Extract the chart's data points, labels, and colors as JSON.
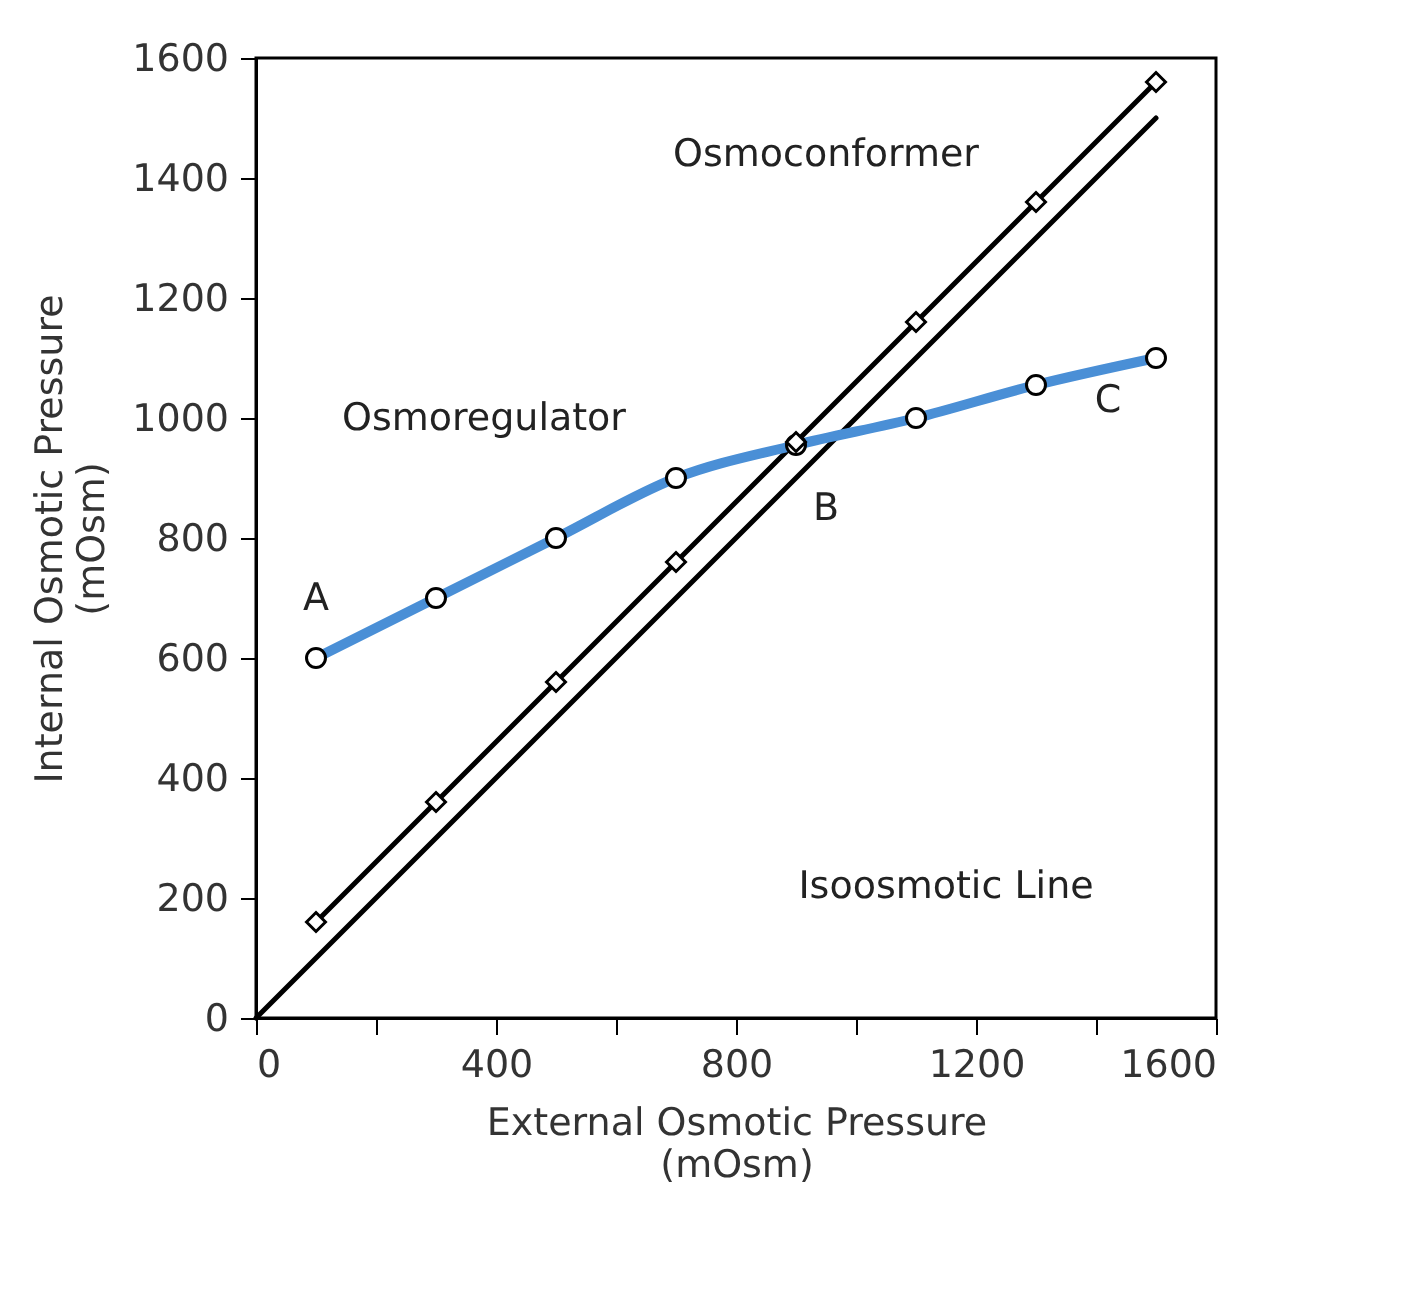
{
  "chart_data": {
    "type": "line",
    "xlabel": "External Osmotic Pressure\n(mOsm)",
    "ylabel": "Internal Osmotic Pressure\n(mOsm)",
    "xlim": [
      0,
      1600
    ],
    "ylim": [
      0,
      1600
    ],
    "xticks": [
      0,
      {
        "value": 200,
        "label": null
      },
      400,
      {
        "value": 600,
        "label": null
      },
      800,
      {
        "value": 1000,
        "label": null
      },
      1200,
      {
        "value": 1400,
        "label": null
      },
      1600
    ],
    "yticks": [
      0,
      200,
      400,
      600,
      800,
      1000,
      1200,
      1400,
      1600
    ],
    "grid": false,
    "series": [
      {
        "color": "#000000",
        "marker": "none",
        "line_style": "solid",
        "x": [
          0,
          1500
        ],
        "values": [
          0,
          1500
        ]
      },
      {
        "color": "#000000",
        "marker": "diamond",
        "line_style": "solid",
        "x": [
          100,
          300,
          500,
          700,
          900,
          1100,
          1300,
          1500
        ],
        "values": [
          160,
          360,
          560,
          760,
          960,
          1160,
          1360,
          1560
        ]
      },
      {
        "color": "#4a8fd6",
        "marker": "circle",
        "line_style": "solid",
        "x": [
          100,
          300,
          500,
          700,
          900,
          1100,
          1300,
          1500
        ],
        "values": [
          600,
          700,
          800,
          900,
          955,
          1000,
          1055,
          1100
        ]
      }
    ],
    "annotations": [
      "Osmoconformer",
      "Osmoregulator",
      "Isoosmotic Line",
      "A",
      "B",
      "C"
    ]
  }
}
